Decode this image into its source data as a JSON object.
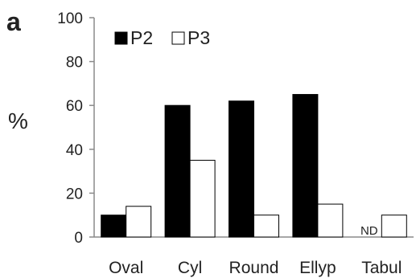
{
  "panel_label": "a",
  "chart_data": {
    "type": "bar",
    "categories": [
      "Oval",
      "Cyl",
      "Round",
      "Ellyp",
      "Tabul"
    ],
    "series": [
      {
        "name": "P2",
        "values": [
          10,
          60,
          62,
          65,
          null
        ],
        "color": "#000000"
      },
      {
        "name": "P3",
        "values": [
          14,
          35,
          10,
          15,
          10
        ],
        "color": "#ffffff"
      }
    ],
    "annotations": [
      {
        "category": "Tabul",
        "series": "P2",
        "text": "ND"
      }
    ],
    "ylabel": "%",
    "ylim": [
      0,
      100
    ],
    "yticks": [
      0,
      20,
      40,
      60,
      80,
      100
    ],
    "legend_position": "top-left",
    "grid": false
  }
}
